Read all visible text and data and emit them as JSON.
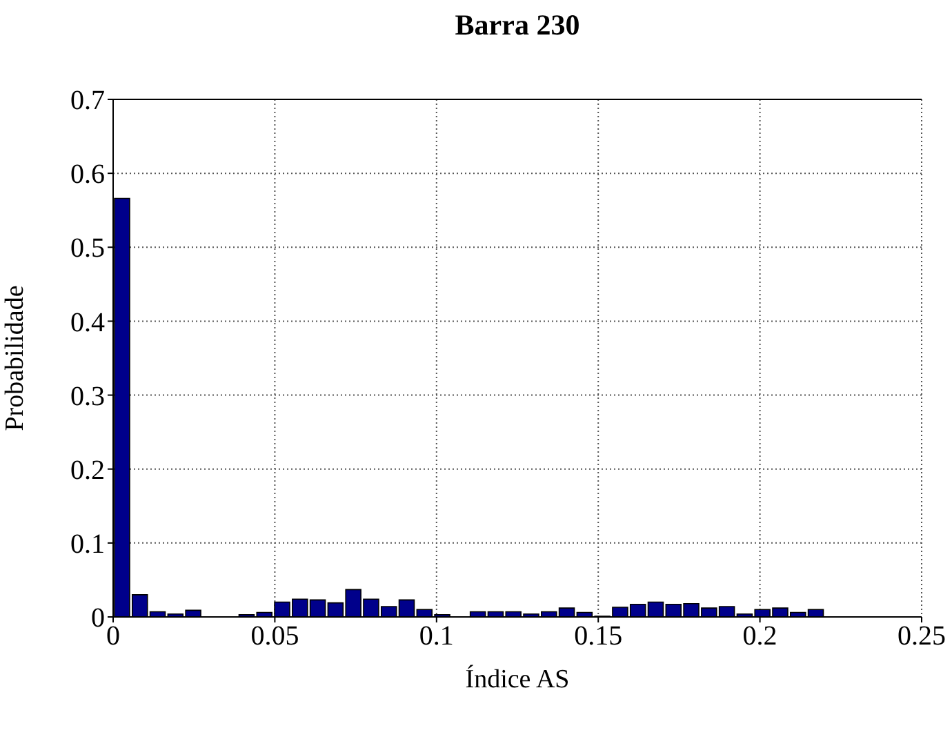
{
  "chart_data": {
    "type": "histogram",
    "title": "Barra 230",
    "xlabel": "Índice AS",
    "ylabel": "Probabilidade",
    "bins": [
      0,
      0.0055,
      0.011,
      0.0165,
      0.022,
      0.0275,
      0.033,
      0.0385,
      0.044,
      0.0495,
      0.055,
      0.0605,
      0.066,
      0.0715,
      0.077,
      0.0825,
      0.088,
      0.0935,
      0.099,
      0.1045,
      0.11,
      0.1155,
      0.121,
      0.1265,
      0.132,
      0.1375,
      0.143,
      0.1485,
      0.154,
      0.1595,
      0.165,
      0.1705,
      0.176,
      0.1815,
      0.187,
      0.1925,
      0.198,
      0.2035,
      0.209,
      0.2145,
      0.22
    ],
    "values": [
      0.566,
      0.03,
      0.007,
      0.004,
      0.009,
      0,
      0,
      0.003,
      0.006,
      0.02,
      0.024,
      0.023,
      0.019,
      0.037,
      0.024,
      0.014,
      0.023,
      0.01,
      0.003,
      0,
      0.007,
      0.007,
      0.007,
      0.004,
      0.007,
      0.012,
      0.006,
      0.001,
      0.013,
      0.017,
      0.02,
      0.017,
      0.018,
      0.012,
      0.014,
      0.004,
      0.01,
      0.012,
      0.006,
      0.01
    ],
    "color": "#00008b",
    "xlim": [
      0,
      0.25
    ],
    "xticks": [
      0,
      0.05,
      0.1,
      0.15,
      0.2,
      0.25
    ],
    "ylim": [
      0,
      0.7
    ],
    "yticks": [
      0,
      0.1,
      0.2,
      0.3,
      0.4,
      0.5,
      0.6,
      0.7
    ],
    "grid": true
  }
}
